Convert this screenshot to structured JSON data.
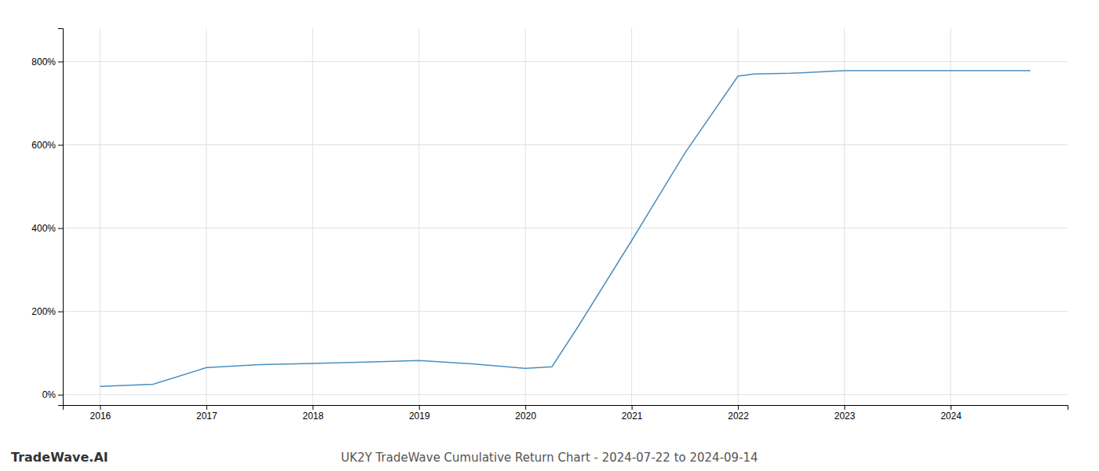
{
  "chart_data": {
    "type": "line",
    "title": "UK2Y TradeWave Cumulative Return Chart - 2024-07-22 to 2024-09-14",
    "annotations": [
      "TradeWave.AI"
    ],
    "x": [
      2016.0,
      2016.5,
      2017.0,
      2017.5,
      2018.0,
      2018.5,
      2019.0,
      2019.5,
      2020.0,
      2020.25,
      2020.5,
      2021.0,
      2021.5,
      2022.0,
      2022.15,
      2022.5,
      2023.0,
      2023.5,
      2024.0,
      2024.75
    ],
    "values": [
      20,
      25,
      65,
      72,
      75,
      78,
      82,
      74,
      63,
      67,
      165,
      370,
      580,
      765,
      770,
      772,
      778,
      778,
      778,
      778
    ],
    "color": "#4a8fc0",
    "xlim": [
      2015.65,
      2025.1
    ],
    "ylim": [
      -25,
      880
    ],
    "xticks": [
      2016,
      2017,
      2018,
      2019,
      2020,
      2021,
      2022,
      2023,
      2024
    ],
    "yticks": [
      {
        "value": 0,
        "label": "0%"
      },
      {
        "value": 200,
        "label": "200%"
      },
      {
        "value": 400,
        "label": "400%"
      },
      {
        "value": 600,
        "label": "600%"
      },
      {
        "value": 800,
        "label": "800%"
      }
    ],
    "grid": true
  }
}
